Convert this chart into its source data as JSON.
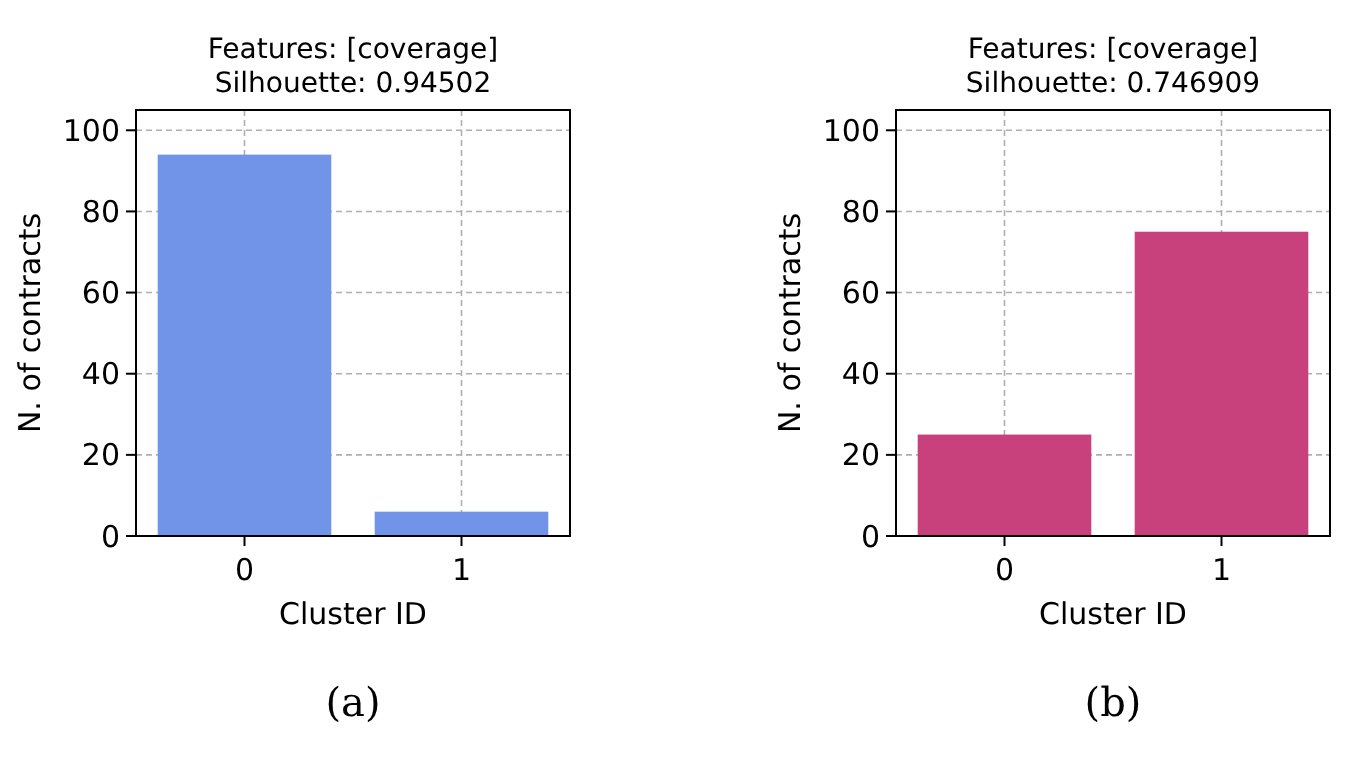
{
  "chart_data": [
    {
      "type": "bar",
      "title": "Features: [coverage]",
      "subtitle": "Silhouette: 0.94502",
      "xlabel": "Cluster ID",
      "ylabel": "N. of contracts",
      "categories": [
        "0",
        "1"
      ],
      "values": [
        94,
        6
      ],
      "color": "#7294e8",
      "ylim": [
        0,
        105
      ],
      "yticks": [
        0,
        20,
        40,
        60,
        80,
        100
      ],
      "grid": true,
      "annotations": [
        "(a)"
      ]
    },
    {
      "type": "bar",
      "title": "Features: [coverage]",
      "subtitle": "Silhouette: 0.746909",
      "xlabel": "Cluster ID",
      "ylabel": "N. of contracts",
      "categories": [
        "0",
        "1"
      ],
      "values": [
        25,
        75
      ],
      "color": "#c8407c",
      "ylim": [
        0,
        105
      ],
      "yticks": [
        0,
        20,
        40,
        60,
        80,
        100
      ],
      "grid": true,
      "annotations": [
        "(b)"
      ]
    }
  ]
}
